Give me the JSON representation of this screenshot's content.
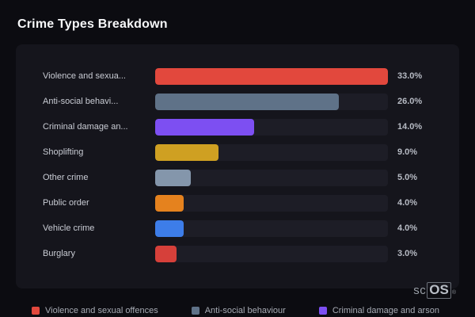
{
  "title": "Crime Types Breakdown",
  "brand": {
    "prefix": "sc",
    "suffix": "OS",
    "reg": "®"
  },
  "chart_data": {
    "type": "bar",
    "orientation": "horizontal",
    "title": "Crime Types Breakdown",
    "xlim": [
      0,
      33
    ],
    "grid": false,
    "legend_position": "bottom",
    "categories": [
      "Violence and sexual offences",
      "Anti-social behaviour",
      "Criminal damage and arson",
      "Shoplifting",
      "Other crime",
      "Public order",
      "Vehicle crime",
      "Burglary"
    ],
    "display_labels": [
      "Violence and sexua...",
      "Anti-social behavi...",
      "Criminal damage an...",
      "Shoplifting",
      "Other crime",
      "Public order",
      "Vehicle crime",
      "Burglary"
    ],
    "values": [
      33.0,
      26.0,
      14.0,
      9.0,
      5.0,
      4.0,
      4.0,
      3.0
    ],
    "value_labels": [
      "33.0%",
      "26.0%",
      "14.0%",
      "9.0%",
      "5.0%",
      "4.0%",
      "4.0%",
      "3.0%"
    ],
    "colors": [
      "#e2483d",
      "#5f7288",
      "#7d4ff2",
      "#cfa022",
      "#8496ab",
      "#e5821e",
      "#3d7de9",
      "#d6403a"
    ],
    "legend": [
      {
        "label": "Violence and sexual offences",
        "color": "#e2483d"
      },
      {
        "label": "Anti-social behaviour",
        "color": "#5f7288"
      },
      {
        "label": "Criminal damage and arson",
        "color": "#7d4ff2"
      }
    ]
  }
}
